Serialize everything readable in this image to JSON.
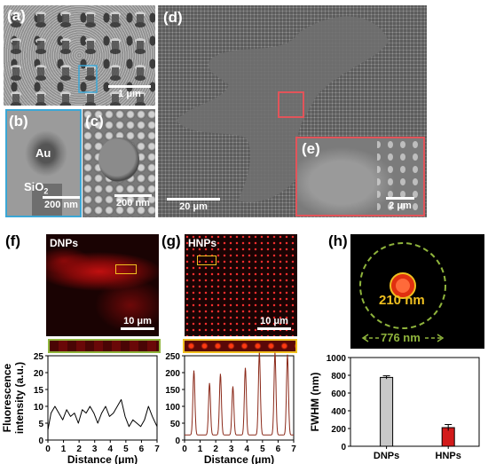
{
  "panels": {
    "a": {
      "letter": "(a)",
      "scale": "1 μm"
    },
    "b": {
      "letter": "(b)",
      "label_au": "Au",
      "label_sio2": "SiO",
      "label_sio2_sub": "2",
      "scale": "200 nm"
    },
    "c": {
      "letter": "(c)",
      "scale": "200 nm"
    },
    "d": {
      "letter": "(d)",
      "scale": "20 μm"
    },
    "e": {
      "letter": "(e)",
      "scale": "2 μm"
    },
    "f": {
      "letter": "(f)",
      "title": "DNPs",
      "scale": "10 μm"
    },
    "g": {
      "letter": "(g)",
      "title": "HNPs",
      "scale": "10 μm"
    },
    "h": {
      "letter": "(h)",
      "inner_label": "210 nm",
      "outer_label": "776 nm"
    }
  },
  "colors": {
    "sem_gray": "#8a8a8a",
    "red_fluor": "#d01010",
    "yellow_box": "#f0c020",
    "green_dash": "#8fb43c",
    "blue_box": "#3ba7d6",
    "pink_box": "#e2545a",
    "bar_gray": "#c8c8c8",
    "bar_red": "#d21a1a"
  },
  "chart_data": [
    {
      "type": "line",
      "panel": "f",
      "xlabel": "Distance (μm)",
      "ylabel": "Fluorescence intensity (a.u.)",
      "xlim": [
        0,
        7
      ],
      "ylim": [
        0,
        25
      ],
      "xticks": [
        "0",
        "1",
        "2",
        "3",
        "4",
        "5",
        "6",
        "7"
      ],
      "yticks": [
        "0",
        "5",
        "10",
        "15",
        "20",
        "25"
      ],
      "x": [
        0,
        0.2,
        0.45,
        0.7,
        0.95,
        1.2,
        1.45,
        1.7,
        1.95,
        2.2,
        2.45,
        2.7,
        2.95,
        3.2,
        3.45,
        3.7,
        3.95,
        4.2,
        4.45,
        4.7,
        4.95,
        5.2,
        5.45,
        5.7,
        5.95,
        6.2,
        6.45,
        6.7,
        7.0
      ],
      "y": [
        3,
        8,
        10,
        8,
        6,
        9,
        7,
        8,
        5,
        9,
        8,
        10,
        8,
        5,
        8,
        10,
        7,
        8,
        10,
        12,
        7,
        4,
        6,
        5,
        4,
        6,
        10,
        7,
        4
      ]
    },
    {
      "type": "line",
      "panel": "g",
      "xlabel": "Distance (μm)",
      "ylabel": "",
      "xlim": [
        0,
        7
      ],
      "ylim": [
        0,
        250
      ],
      "xticks": [
        "0",
        "1",
        "2",
        "3",
        "4",
        "5",
        "6",
        "7"
      ],
      "yticks": [
        "0",
        "50",
        "100",
        "150",
        "200",
        "250"
      ],
      "peaks": [
        {
          "x": 0.6,
          "y": 205
        },
        {
          "x": 1.6,
          "y": 168
        },
        {
          "x": 2.3,
          "y": 195
        },
        {
          "x": 3.1,
          "y": 158
        },
        {
          "x": 3.9,
          "y": 213
        },
        {
          "x": 4.8,
          "y": 258
        },
        {
          "x": 5.8,
          "y": 258
        },
        {
          "x": 6.6,
          "y": 252
        }
      ],
      "baseline": 15
    },
    {
      "type": "bar",
      "panel": "h",
      "ylabel": "FWHM (nm)",
      "categories": [
        "DNPs",
        "HNPs"
      ],
      "values": [
        776,
        210
      ],
      "errors": [
        18,
        35
      ],
      "ylim": [
        0,
        1000
      ],
      "yticks": [
        "0",
        "200",
        "400",
        "600",
        "800",
        "1000"
      ]
    }
  ]
}
